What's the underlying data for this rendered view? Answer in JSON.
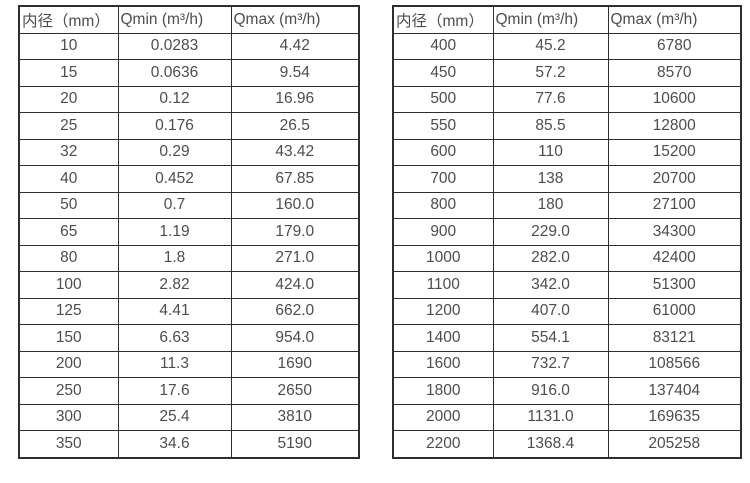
{
  "page": {
    "background_color": "#ffffff",
    "border_color": "#2e2e2e",
    "text_color": "#4d4d4d"
  },
  "tables": [
    {
      "name": "flow-table-small-diameters",
      "headers": [
        "内径（mm）",
        "Qmin (m³/h)",
        "Qmax (m³/h)"
      ],
      "rows": [
        [
          "10",
          "0.0283",
          "4.42"
        ],
        [
          "15",
          "0.0636",
          "9.54"
        ],
        [
          "20",
          "0.12",
          "16.96"
        ],
        [
          "25",
          "0.176",
          "26.5"
        ],
        [
          "32",
          "0.29",
          "43.42"
        ],
        [
          "40",
          "0.452",
          "67.85"
        ],
        [
          "50",
          "0.7",
          "160.0"
        ],
        [
          "65",
          "1.19",
          "179.0"
        ],
        [
          "80",
          "1.8",
          "271.0"
        ],
        [
          "100",
          "2.82",
          "424.0"
        ],
        [
          "125",
          "4.41",
          "662.0"
        ],
        [
          "150",
          "6.63",
          "954.0"
        ],
        [
          "200",
          "11.3",
          "1690"
        ],
        [
          "250",
          "17.6",
          "2650"
        ],
        [
          "300",
          "25.4",
          "3810"
        ],
        [
          "350",
          "34.6",
          "5190"
        ]
      ]
    },
    {
      "name": "flow-table-large-diameters",
      "headers": [
        "内径（mm）",
        "Qmin (m³/h)",
        "Qmax (m³/h)"
      ],
      "rows": [
        [
          "400",
          "45.2",
          "6780"
        ],
        [
          "450",
          "57.2",
          "8570"
        ],
        [
          "500",
          "77.6",
          "10600"
        ],
        [
          "550",
          "85.5",
          "12800"
        ],
        [
          "600",
          "110",
          "15200"
        ],
        [
          "700",
          "138",
          "20700"
        ],
        [
          "800",
          "180",
          "27100"
        ],
        [
          "900",
          "229.0",
          "34300"
        ],
        [
          "1000",
          "282.0",
          "42400"
        ],
        [
          "1100",
          "342.0",
          "51300"
        ],
        [
          "1200",
          "407.0",
          "61000"
        ],
        [
          "1400",
          "554.1",
          "83121"
        ],
        [
          "1600",
          "732.7",
          "108566"
        ],
        [
          "1800",
          "916.0",
          "137404"
        ],
        [
          "2000",
          "1131.0",
          "169635"
        ],
        [
          "2200",
          "1368.4",
          "205258"
        ]
      ]
    }
  ]
}
